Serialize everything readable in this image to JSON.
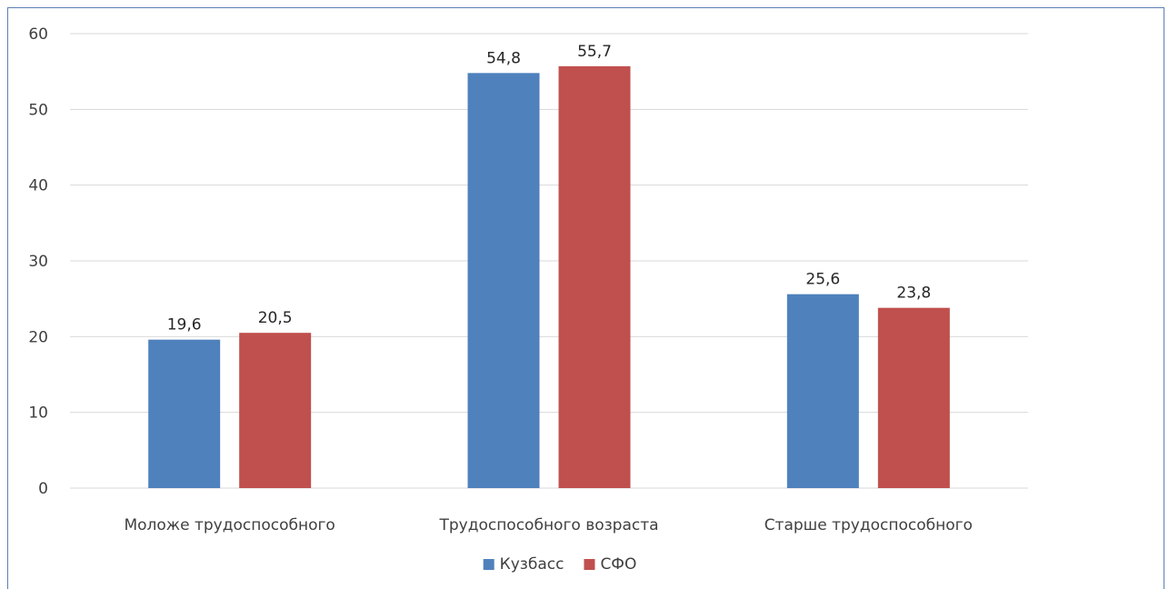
{
  "chart_data": {
    "type": "bar",
    "title": "",
    "xlabel": "",
    "ylabel": "",
    "categories": [
      "Моложе трудоспособного",
      "Трудоспособного возраста",
      "Старше трудоспособного"
    ],
    "series": [
      {
        "name": "Кузбасс",
        "color": "#4f81bd",
        "values": [
          19.6,
          54.8,
          25.6
        ],
        "labels": [
          "19,6",
          "54,8",
          "25,6"
        ]
      },
      {
        "name": "СФО",
        "color": "#c0504d",
        "values": [
          20.5,
          55.7,
          23.8
        ],
        "labels": [
          "20,5",
          "55,7",
          "23,8"
        ]
      }
    ],
    "ylim": [
      0,
      60
    ],
    "yticks": [
      0,
      10,
      20,
      30,
      40,
      50,
      60
    ],
    "grid": true,
    "legend_position": "bottom"
  }
}
